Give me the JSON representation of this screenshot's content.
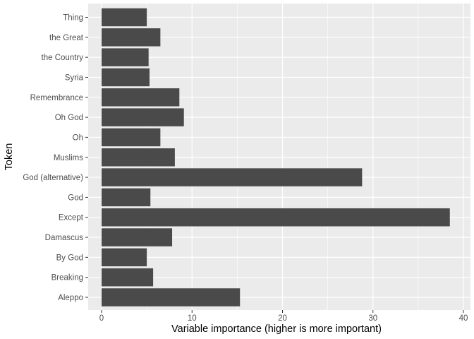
{
  "chart_data": {
    "type": "bar",
    "orientation": "horizontal",
    "xlabel": "Variable importance (higher is more important)",
    "ylabel": "Token",
    "xlim": [
      0,
      40
    ],
    "xticks": [
      0,
      10,
      20,
      30,
      40
    ],
    "grid": true,
    "categories": [
      "Thing",
      "the Great",
      "the Country",
      "Syria",
      "Remembrance",
      "Oh God",
      "Oh",
      "Muslims",
      "God (alternative)",
      "God",
      "Except",
      "Damascus",
      "By God",
      "Breaking",
      "Aleppo"
    ],
    "values": [
      5.0,
      6.5,
      5.2,
      5.3,
      8.6,
      9.1,
      6.5,
      8.1,
      28.8,
      5.4,
      38.5,
      7.8,
      5.0,
      5.7,
      15.3
    ],
    "colors": {
      "panel": "#ebebeb",
      "grid": "#ffffff",
      "bar": "#4a4a4a",
      "tick_text": "#4d4d4d",
      "title_text": "#000000"
    }
  }
}
